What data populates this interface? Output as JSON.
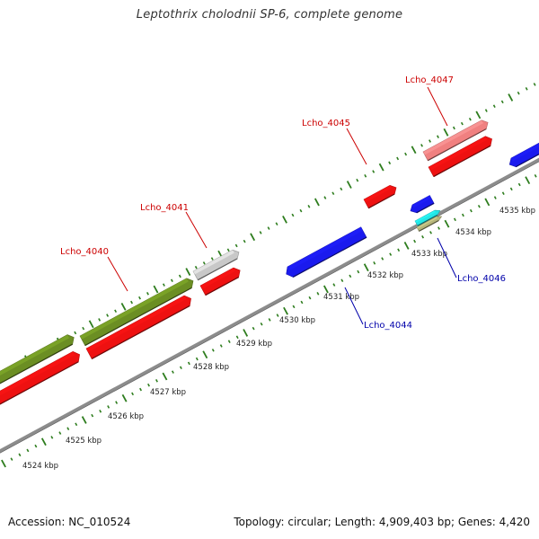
{
  "title": "Leptothrix cholodnii SP-6, complete genome",
  "footer": {
    "accession": "Accession: NC_010524",
    "stats": "Topology: circular; Length: 4,909,403 bp; Genes: 4,420"
  },
  "colors": {
    "backbone": "#8c8c8c",
    "tick": "#2e7d1e",
    "forward_cds": "#ee1111",
    "reverse_cds": "#1a1aee",
    "olive": "#6b8e23",
    "gray_gene": "#c8c8c8",
    "pink_gene": "#f08080",
    "cyan_gene": "#22e6e6",
    "khaki_gene": "#b5b57a",
    "label_forward": "#cc0000",
    "label_reverse": "#0000aa"
  },
  "ticks": [
    {
      "kbp": 4524,
      "label": "4524 kbp"
    },
    {
      "kbp": 4525,
      "label": "4525 kbp"
    },
    {
      "kbp": 4526,
      "label": "4526 kbp"
    },
    {
      "kbp": 4527,
      "label": "4527 kbp"
    },
    {
      "kbp": 4528,
      "label": "4528 kbp"
    },
    {
      "kbp": 4529,
      "label": "4529 kbp"
    },
    {
      "kbp": 4530,
      "label": "4530 kbp"
    },
    {
      "kbp": 4531,
      "label": "4531 kbp"
    },
    {
      "kbp": 4532,
      "label": "4532 kbp"
    },
    {
      "kbp": 4533,
      "label": "4533 kbp"
    },
    {
      "kbp": 4534,
      "label": "4534 kbp"
    },
    {
      "kbp": 4535,
      "label": "4535 kbp"
    }
  ],
  "labels": {
    "g4040": "Lcho_4040",
    "g4041": "Lcho_4041",
    "g4044": "Lcho_4044",
    "g4045": "Lcho_4045",
    "g4046": "Lcho_4046",
    "g4047": "Lcho_4047"
  }
}
